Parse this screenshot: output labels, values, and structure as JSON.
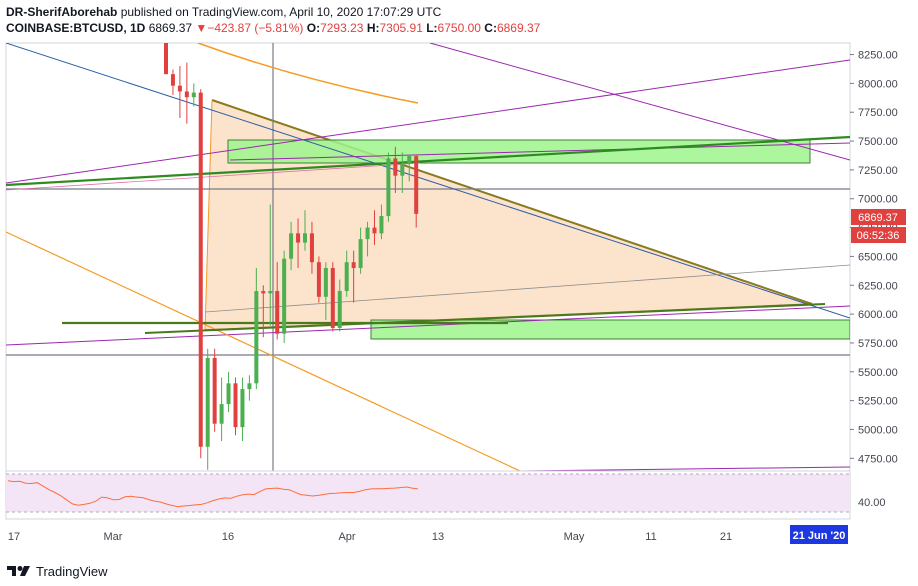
{
  "header": {
    "author": "DR-SherifAborehab",
    "published_text": "published on TradingView.com, April 10, 2020 17:07:29 UTC",
    "symbol": "COINBASE:BTCUSD, 1D",
    "last": "6869.37",
    "change_arrow": "▼",
    "change": "−423.87 (−5.81%)",
    "o_label": "O:",
    "o_value": "7293.23",
    "h_label": "H:",
    "h_value": "7305.91",
    "l_label": "L:",
    "l_value": "6750.00",
    "c_label": "C:",
    "c_value": "6869.37"
  },
  "footer": {
    "brand": "TradingView"
  },
  "chart_data": {
    "type": "candlestick",
    "y_axis": {
      "ticks": [
        4750,
        5000,
        5250,
        5500,
        5750,
        6000,
        6250,
        6500,
        6750,
        7000,
        7250,
        7500,
        7750,
        8000,
        8250
      ],
      "tick_labels": [
        "4750.00",
        "5000.00",
        "5250.00",
        "5500.00",
        "5750.00",
        "6000.00",
        "6250.00",
        "6500.00",
        "6750.00",
        "7000.00",
        "7250.00",
        "7500.00",
        "7750.00",
        "8000.00",
        "8250.00"
      ],
      "range": [
        4640,
        8350
      ],
      "price_label": "6869.37",
      "countdown_label": "06:52:36"
    },
    "x_axis": {
      "labels": [
        "17",
        "Mar",
        "16",
        "Apr",
        "13",
        "May",
        "11",
        "21"
      ],
      "highlight_label": "21 Jun '20"
    },
    "candles": [
      {
        "o": 8350,
        "h": 8350,
        "l": 8080,
        "c": 8080
      },
      {
        "o": 8080,
        "h": 8120,
        "l": 7900,
        "c": 7980
      },
      {
        "o": 7980,
        "h": 8150,
        "l": 7700,
        "c": 7930
      },
      {
        "o": 7930,
        "h": 8180,
        "l": 7650,
        "c": 7880
      },
      {
        "o": 7880,
        "h": 8000,
        "l": 7800,
        "c": 7920
      },
      {
        "o": 7920,
        "h": 7950,
        "l": 4750,
        "c": 4850
      },
      {
        "o": 4850,
        "h": 5700,
        "l": 4650,
        "c": 5620
      },
      {
        "o": 5620,
        "h": 5700,
        "l": 4980,
        "c": 5050
      },
      {
        "o": 5050,
        "h": 5450,
        "l": 4900,
        "c": 5220
      },
      {
        "o": 5220,
        "h": 5500,
        "l": 5150,
        "c": 5400
      },
      {
        "o": 5400,
        "h": 5450,
        "l": 4950,
        "c": 5020
      },
      {
        "o": 5020,
        "h": 5450,
        "l": 4900,
        "c": 5350
      },
      {
        "o": 5350,
        "h": 5470,
        "l": 5250,
        "c": 5400
      },
      {
        "o": 5400,
        "h": 6400,
        "l": 5350,
        "c": 6200
      },
      {
        "o": 6200,
        "h": 6250,
        "l": 5800,
        "c": 6180
      },
      {
        "o": 6180,
        "h": 6950,
        "l": 5900,
        "c": 6200
      },
      {
        "o": 6200,
        "h": 6450,
        "l": 5780,
        "c": 5830
      },
      {
        "o": 5830,
        "h": 6550,
        "l": 5750,
        "c": 6480
      },
      {
        "o": 6480,
        "h": 6800,
        "l": 6380,
        "c": 6700
      },
      {
        "o": 6700,
        "h": 6830,
        "l": 6400,
        "c": 6620
      },
      {
        "o": 6620,
        "h": 6900,
        "l": 6550,
        "c": 6700
      },
      {
        "o": 6700,
        "h": 6800,
        "l": 6350,
        "c": 6450
      },
      {
        "o": 6450,
        "h": 6500,
        "l": 6100,
        "c": 6150
      },
      {
        "o": 6150,
        "h": 6450,
        "l": 5950,
        "c": 6400
      },
      {
        "o": 6400,
        "h": 6450,
        "l": 5850,
        "c": 5880
      },
      {
        "o": 5880,
        "h": 6300,
        "l": 5850,
        "c": 6200
      },
      {
        "o": 6200,
        "h": 6550,
        "l": 6150,
        "c": 6450
      },
      {
        "o": 6450,
        "h": 6550,
        "l": 6100,
        "c": 6400
      },
      {
        "o": 6400,
        "h": 6750,
        "l": 6350,
        "c": 6650
      },
      {
        "o": 6650,
        "h": 6800,
        "l": 6500,
        "c": 6750
      },
      {
        "o": 6750,
        "h": 6900,
        "l": 6600,
        "c": 6700
      },
      {
        "o": 6700,
        "h": 6950,
        "l": 6650,
        "c": 6850
      },
      {
        "o": 6850,
        "h": 7400,
        "l": 6800,
        "c": 7350
      },
      {
        "o": 7350,
        "h": 7450,
        "l": 7050,
        "c": 7200
      },
      {
        "o": 7200,
        "h": 7400,
        "l": 7050,
        "c": 7300
      },
      {
        "o": 7300,
        "h": 7380,
        "l": 7150,
        "c": 7370
      },
      {
        "o": 7370,
        "h": 7380,
        "l": 6750,
        "c": 6869
      }
    ],
    "rsi": {
      "level_label": "40.00",
      "values": [
        44.5,
        44.2,
        44.3,
        43.6,
        43.5,
        43.8,
        42.5,
        41.2,
        40.2,
        39.0,
        37.5,
        36.0,
        35.5,
        35.8,
        36.2,
        37.0,
        38.5,
        38.2,
        37.5,
        37.6,
        38.6,
        38.8,
        38.5,
        38.3,
        37.6,
        37.0,
        36.7,
        36.0,
        35.4,
        35.0,
        35.2,
        35.4,
        35.6,
        35.8,
        36.4,
        37.2,
        37.8,
        38.2,
        38.0,
        38.8,
        39.3,
        39.6,
        39.4,
        40.5,
        41.5,
        41.7,
        41.8,
        41.4,
        41.2,
        40.3,
        39.4,
        39.2,
        38.9,
        39.1,
        39.5,
        39.8,
        39.9,
        40.1,
        40.2,
        40.2,
        40.6,
        41.2,
        41.5,
        41.6,
        41.6,
        41.7,
        41.8,
        42.0,
        42.2,
        41.8,
        41.5
      ]
    }
  },
  "colors": {
    "bull": "#26a69a",
    "bull_candle": "#4caf50",
    "bear": "#e0413f",
    "triangle_fill": "#fce3cc",
    "triangle_edge": "#8a7a1e",
    "green_zone": "#9ef58c",
    "green_line": "#2e8b1f",
    "orange": "#f59a23",
    "purple": "#9c27b0",
    "blue": "#2a5fa5",
    "rsi_fill": "#f3e5f5",
    "rsi_line": "#ff6d3a",
    "axis_text": "#434651",
    "highlight_bg": "#1d38e0"
  }
}
